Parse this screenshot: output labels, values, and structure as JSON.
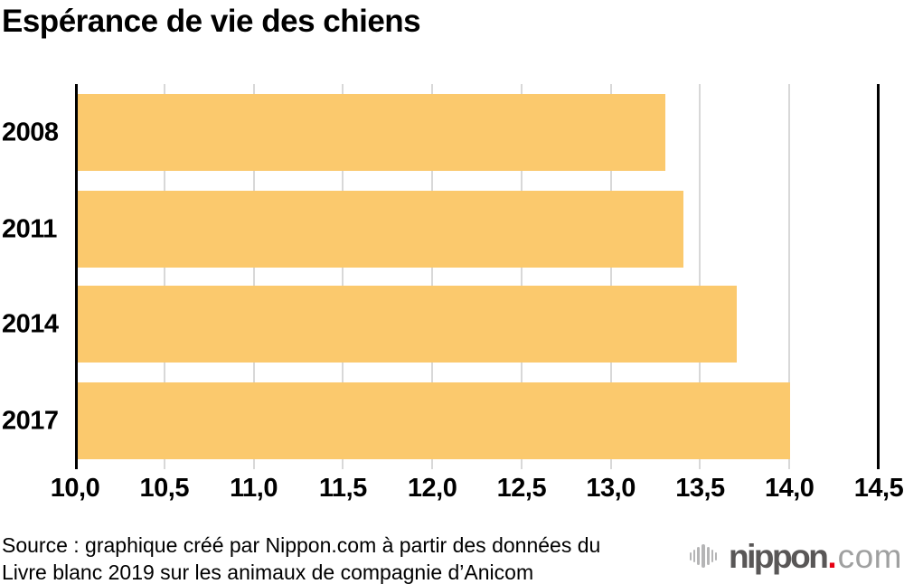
{
  "title": "Espérance de vie des chiens",
  "chart_data": {
    "type": "bar",
    "orientation": "horizontal",
    "title": "Espérance de vie des chiens",
    "categories": [
      "2008",
      "2011",
      "2014",
      "2017"
    ],
    "values": [
      13.3,
      13.4,
      13.7,
      14.0
    ],
    "xlim": [
      10.0,
      14.5
    ],
    "x_ticks": [
      {
        "value": 10.0,
        "label": "10,0"
      },
      {
        "value": 10.5,
        "label": "10,5"
      },
      {
        "value": 11.0,
        "label": "11,0"
      },
      {
        "value": 11.5,
        "label": "11,5"
      },
      {
        "value": 12.0,
        "label": "12,0"
      },
      {
        "value": 12.5,
        "label": "12,5"
      },
      {
        "value": 13.0,
        "label": "13,0"
      },
      {
        "value": 13.5,
        "label": "13,5"
      },
      {
        "value": 14.0,
        "label": "14,0"
      },
      {
        "value": 14.5,
        "label": "14,5"
      }
    ],
    "grid": true,
    "legend": false,
    "colors": {
      "bar": "#fbc96d",
      "grid": "#d8d8d8",
      "axis": "#000000",
      "text": "#000000"
    }
  },
  "source": {
    "line1": "Source : graphique créé par Nippon.com à partir des données du",
    "line2": "Livre blanc 2019 sur les animaux de compagnie d’Anicom"
  },
  "logo": {
    "brand": "nippon",
    "dot": ".",
    "tld": "com",
    "icon": "soundwave-bars-icon",
    "colors": {
      "brand": "#595757",
      "dot": "#e60012",
      "tld": "#9fa0a0",
      "icon": "#b5b5b6"
    }
  }
}
